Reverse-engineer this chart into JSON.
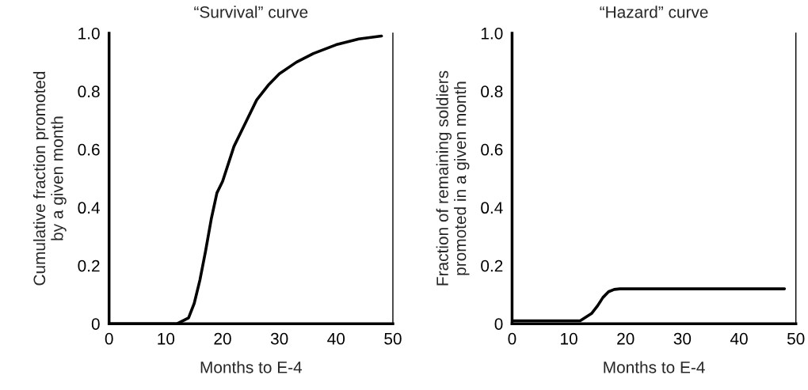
{
  "chart_data": [
    {
      "type": "line",
      "title": "“Survival” curve",
      "xlabel": "Months to E-4",
      "ylabel": "Cumulative fraction promoted\nby a given month",
      "x": [
        0,
        10,
        12,
        14,
        15,
        16,
        17,
        18,
        19,
        20,
        22,
        24,
        26,
        28,
        30,
        33,
        36,
        40,
        44,
        48
      ],
      "series": [
        {
          "color": "#000000",
          "values": [
            0,
            0,
            0,
            0.02,
            0.07,
            0.15,
            0.25,
            0.36,
            0.45,
            0.49,
            0.61,
            0.69,
            0.77,
            0.82,
            0.86,
            0.9,
            0.93,
            0.96,
            0.98,
            0.99
          ]
        }
      ],
      "xlim": [
        0,
        50
      ],
      "ylim": [
        0,
        1
      ],
      "xticks": [
        0,
        10,
        20,
        30,
        40,
        50
      ],
      "yticks": [
        0,
        0.2,
        0.4,
        0.6,
        0.8,
        {
          "value": 1,
          "label": "1.0"
        }
      ],
      "grid": false,
      "legend": false
    },
    {
      "type": "line",
      "title": "“Hazard” curve",
      "xlabel": "Months to E-4",
      "ylabel": "Fraction of remaining soldiers\npromoted in a given month",
      "x": [
        0,
        10,
        12,
        14,
        15,
        16,
        17,
        18,
        19,
        20,
        30,
        40,
        48
      ],
      "series": [
        {
          "color": "#000000",
          "values": [
            0.01,
            0.01,
            0.01,
            0.035,
            0.06,
            0.09,
            0.11,
            0.118,
            0.12,
            0.12,
            0.12,
            0.12,
            0.12
          ]
        }
      ],
      "xlim": [
        0,
        50
      ],
      "ylim": [
        0,
        1
      ],
      "xticks": [
        0,
        10,
        20,
        30,
        40,
        50
      ],
      "yticks": [
        0,
        0.2,
        0.4,
        0.6,
        0.8,
        {
          "value": 1,
          "label": "1.0"
        }
      ],
      "grid": false,
      "legend": false
    }
  ]
}
